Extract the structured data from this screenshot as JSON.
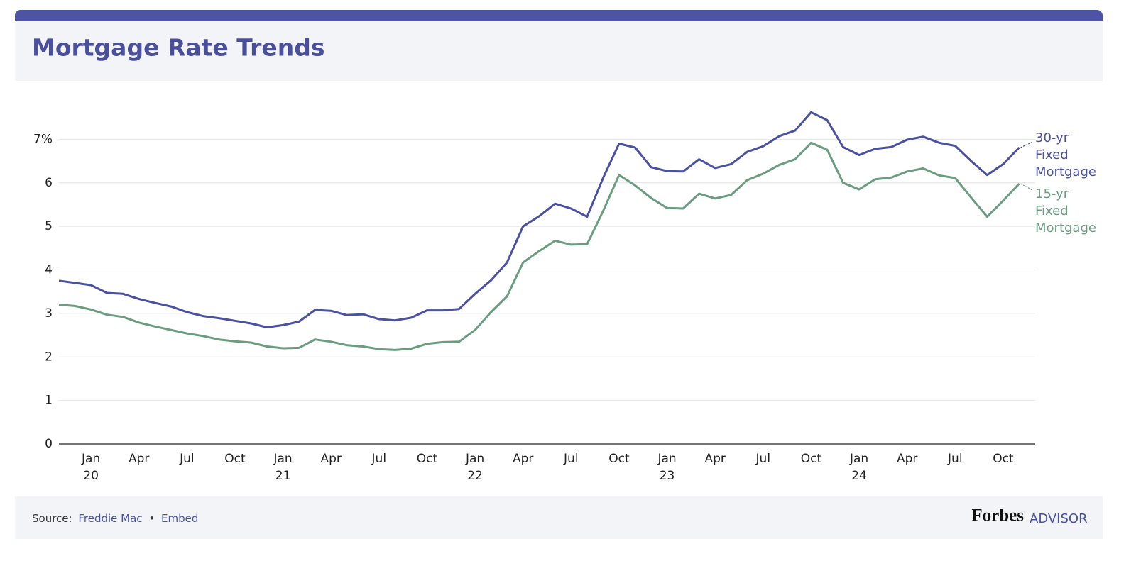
{
  "chart_data": {
    "type": "line",
    "title": "Mortgage Rate Trends",
    "x": [
      "2019-11",
      "2019-12",
      "2020-01",
      "2020-02",
      "2020-03",
      "2020-04",
      "2020-05",
      "2020-06",
      "2020-07",
      "2020-08",
      "2020-09",
      "2020-10",
      "2020-11",
      "2020-12",
      "2021-01",
      "2021-02",
      "2021-03",
      "2021-04",
      "2021-05",
      "2021-06",
      "2021-07",
      "2021-08",
      "2021-09",
      "2021-10",
      "2021-11",
      "2021-12",
      "2022-01",
      "2022-02",
      "2022-03",
      "2022-04",
      "2022-05",
      "2022-06",
      "2022-07",
      "2022-08",
      "2022-09",
      "2022-10",
      "2022-11",
      "2022-12",
      "2023-01",
      "2023-02",
      "2023-03",
      "2023-04",
      "2023-05",
      "2023-06",
      "2023-07",
      "2023-08",
      "2023-09",
      "2023-10",
      "2023-11",
      "2023-12",
      "2024-01",
      "2024-02",
      "2024-03",
      "2024-04",
      "2024-05",
      "2024-06",
      "2024-07",
      "2024-08",
      "2024-09",
      "2024-10",
      "2024-11"
    ],
    "series": [
      {
        "name": "30-yr Fixed Mortgage",
        "color": "#4a51a0",
        "values": [
          3.75,
          3.7,
          3.65,
          3.47,
          3.45,
          3.33,
          3.24,
          3.16,
          3.03,
          2.94,
          2.89,
          2.83,
          2.77,
          2.68,
          2.73,
          2.81,
          3.08,
          3.06,
          2.96,
          2.98,
          2.87,
          2.84,
          2.9,
          3.07,
          3.07,
          3.1,
          3.45,
          3.76,
          4.17,
          5.0,
          5.23,
          5.52,
          5.41,
          5.22,
          6.11,
          6.9,
          6.81,
          6.36,
          6.27,
          6.26,
          6.54,
          6.34,
          6.43,
          6.71,
          6.84,
          7.07,
          7.2,
          7.62,
          7.44,
          6.82,
          6.64,
          6.78,
          6.82,
          6.99,
          7.06,
          6.92,
          6.85,
          6.5,
          6.18,
          6.43,
          6.81
        ]
      },
      {
        "name": "15-yr Fixed Mortgage",
        "color": "#6a9c80",
        "values": [
          3.2,
          3.17,
          3.09,
          2.97,
          2.92,
          2.79,
          2.7,
          2.62,
          2.54,
          2.48,
          2.4,
          2.36,
          2.33,
          2.24,
          2.2,
          2.21,
          2.4,
          2.35,
          2.27,
          2.24,
          2.18,
          2.16,
          2.19,
          2.3,
          2.34,
          2.35,
          2.62,
          3.03,
          3.39,
          4.17,
          4.43,
          4.67,
          4.58,
          4.59,
          5.35,
          6.18,
          5.94,
          5.65,
          5.42,
          5.41,
          5.75,
          5.64,
          5.72,
          6.06,
          6.21,
          6.41,
          6.54,
          6.92,
          6.76,
          6.0,
          5.85,
          6.08,
          6.12,
          6.26,
          6.33,
          6.17,
          6.11,
          5.66,
          5.22,
          5.59,
          5.98
        ]
      }
    ],
    "xlim": [
      "2019-11",
      "2024-12"
    ],
    "xticks": [
      {
        "value": "2020-01",
        "label": "Jan 20"
      },
      {
        "value": "2020-04",
        "label": "Apr"
      },
      {
        "value": "2020-07",
        "label": "Jul"
      },
      {
        "value": "2020-10",
        "label": "Oct"
      },
      {
        "value": "2021-01",
        "label": "Jan 21"
      },
      {
        "value": "2021-04",
        "label": "Apr"
      },
      {
        "value": "2021-07",
        "label": "Jul"
      },
      {
        "value": "2021-10",
        "label": "Oct"
      },
      {
        "value": "2022-01",
        "label": "Jan 22"
      },
      {
        "value": "2022-04",
        "label": "Apr"
      },
      {
        "value": "2022-07",
        "label": "Jul"
      },
      {
        "value": "2022-10",
        "label": "Oct"
      },
      {
        "value": "2023-01",
        "label": "Jan 23"
      },
      {
        "value": "2023-04",
        "label": "Apr"
      },
      {
        "value": "2023-07",
        "label": "Jul"
      },
      {
        "value": "2023-10",
        "label": "Oct"
      },
      {
        "value": "2024-01",
        "label": "Jan 24"
      },
      {
        "value": "2024-04",
        "label": "Apr"
      },
      {
        "value": "2024-07",
        "label": "Jul"
      },
      {
        "value": "2024-10",
        "label": "Oct"
      }
    ],
    "ylim": [
      0,
      8
    ],
    "yticks": [
      0,
      1,
      2,
      3,
      4,
      5,
      6,
      {
        "value": 7,
        "label": "7%"
      }
    ],
    "grid": true
  },
  "footer": {
    "source_label": "Source:",
    "source_link": "Freddie Mac",
    "separator": "•",
    "embed": "Embed",
    "brand": "Forbes",
    "brand_sub": "ADVISOR"
  }
}
